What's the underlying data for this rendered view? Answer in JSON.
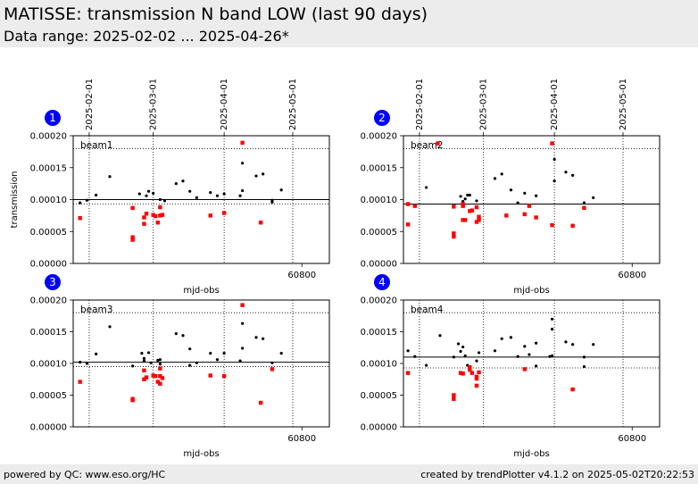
{
  "header": {
    "title": "MATISSE: transmission N band LOW (last 90 days)",
    "subtitle": "Data range: 2025-02-02 ... 2025-04-26*"
  },
  "footer": {
    "left": "powered by QC: www.eso.org/HC",
    "right": "created by trendPlotter v4.1.2 on 2025-05-02T20:22:53"
  },
  "colors": {
    "black_points": "#000000",
    "red_points": "#ff0000",
    "badge": "#0000ff"
  },
  "chart_data": [
    {
      "type": "scatter",
      "panel_number": "1",
      "label": "beam1",
      "xlabel": "mjd-obs",
      "ylabel": "transmission",
      "xlim": [
        60700,
        60812
      ],
      "ylim": [
        0,
        0.0002
      ],
      "yticks": [
        "0.00000",
        "0.00005",
        "0.00010",
        "0.00015",
        "0.00020"
      ],
      "xtick_label": "60800",
      "date_labels": [
        "2025-02-01",
        "2025-03-01",
        "2025-04-01",
        "2025-05-01"
      ],
      "date_mjd": [
        60707,
        60735,
        60766,
        60796
      ],
      "hlines": {
        "solid": 0.0001,
        "dotted": [
          0.00018,
          9.3e-05
        ]
      },
      "series": [
        {
          "color": "black",
          "points": [
            [
              60703,
              9.5e-05
            ],
            [
              60706,
              9.9e-05
            ],
            [
              60710,
              0.000107
            ],
            [
              60716,
              0.000136
            ],
            [
              60729,
              0.000109
            ],
            [
              60732,
              0.000106
            ],
            [
              60733,
              0.000113
            ],
            [
              60735,
              0.00011
            ],
            [
              60738,
              0.0001
            ],
            [
              60740,
              9.8e-05
            ],
            [
              60745,
              0.000125
            ],
            [
              60748,
              0.000129
            ],
            [
              60751,
              0.000113
            ],
            [
              60754,
              0.000103
            ],
            [
              60760,
              0.000111
            ],
            [
              60763,
              0.000106
            ],
            [
              60766,
              0.000109
            ],
            [
              60773,
              0.000106
            ],
            [
              60774,
              0.000114
            ],
            [
              60774,
              0.000157
            ],
            [
              60780,
              0.000137
            ],
            [
              60783,
              0.00014
            ],
            [
              60787,
              9.6e-05
            ],
            [
              60787,
              9.9e-05
            ],
            [
              60791,
              0.000115
            ]
          ]
        },
        {
          "color": "red",
          "points": [
            [
              60703,
              7.1e-05
            ],
            [
              60726,
              8.7e-05
            ],
            [
              60726,
              3.7e-05
            ],
            [
              60726,
              4.1e-05
            ],
            [
              60731,
              6.2e-05
            ],
            [
              60731,
              7.2e-05
            ],
            [
              60732,
              7.8e-05
            ],
            [
              60735,
              7.6e-05
            ],
            [
              60736,
              7.4e-05
            ],
            [
              60737,
              6.4e-05
            ],
            [
              60738,
              8.8e-05
            ],
            [
              60738,
              7.5e-05
            ],
            [
              60739,
              7.6e-05
            ],
            [
              60760,
              7.5e-05
            ],
            [
              60766,
              7.9e-05
            ],
            [
              60774,
              0.000189
            ],
            [
              60782,
              6.4e-05
            ]
          ]
        }
      ]
    },
    {
      "type": "scatter",
      "panel_number": "2",
      "label": "beam2",
      "xlabel": "mjd-obs",
      "ylabel": "",
      "xlim": [
        60700,
        60812
      ],
      "ylim": [
        0,
        0.0002
      ],
      "yticks": [
        "0.00000",
        "0.00005",
        "0.00010",
        "0.00015",
        "0.00020"
      ],
      "xtick_label": "60800",
      "date_labels": [
        "2025-02-01",
        "2025-03-01",
        "2025-04-01",
        "2025-05-01"
      ],
      "date_mjd": [
        60707,
        60735,
        60766,
        60796
      ],
      "hlines": {
        "solid": 9.3e-05,
        "dotted": [
          0.00018
        ]
      },
      "series": [
        {
          "color": "black",
          "points": [
            [
              60710,
              0.000119
            ],
            [
              60725,
              0.000105
            ],
            [
              60726,
              9.7e-05
            ],
            [
              60727,
              0.000101
            ],
            [
              60728,
              0.000107
            ],
            [
              60729,
              0.000107
            ],
            [
              60732,
              9.8e-05
            ],
            [
              60740,
              0.000133
            ],
            [
              60743,
              0.00014
            ],
            [
              60747,
              0.000115
            ],
            [
              60750,
              9.5e-05
            ],
            [
              60753,
              0.00011
            ],
            [
              60758,
              0.000106
            ],
            [
              60766,
              0.000163
            ],
            [
              60766,
              0.000129
            ],
            [
              60771,
              0.000143
            ],
            [
              60774,
              0.000138
            ],
            [
              60779,
              9.5e-05
            ],
            [
              60783,
              0.000103
            ]
          ]
        },
        {
          "color": "red",
          "points": [
            [
              60702,
              9.3e-05
            ],
            [
              60702,
              6.1e-05
            ],
            [
              60705,
              9e-05
            ],
            [
              60715,
              0.000188
            ],
            [
              60722,
              8.9e-05
            ],
            [
              60722,
              4.7e-05
            ],
            [
              60722,
              4.2e-05
            ],
            [
              60726,
              9.3e-05
            ],
            [
              60726,
              9e-05
            ],
            [
              60726,
              6.8e-05
            ],
            [
              60727,
              6.8e-05
            ],
            [
              60729,
              8.2e-05
            ],
            [
              60730,
              8.3e-05
            ],
            [
              60732,
              8.8e-05
            ],
            [
              60732,
              6.5e-05
            ],
            [
              60733,
              6.8e-05
            ],
            [
              60733,
              7.3e-05
            ],
            [
              60745,
              7.5e-05
            ],
            [
              60753,
              7.7e-05
            ],
            [
              60755,
              9e-05
            ],
            [
              60758,
              7.2e-05
            ],
            [
              60765,
              6e-05
            ],
            [
              60765,
              0.000188
            ],
            [
              60774,
              5.9e-05
            ],
            [
              60779,
              8.7e-05
            ]
          ]
        }
      ]
    },
    {
      "type": "scatter",
      "panel_number": "3",
      "label": "beam3",
      "xlabel": "mjd-obs",
      "ylabel": "",
      "xlim": [
        60700,
        60812
      ],
      "ylim": [
        0,
        0.0002
      ],
      "yticks": [
        "0.00000",
        "0.00005",
        "0.00010",
        "0.00015",
        "0.00020"
      ],
      "xtick_label": "60800",
      "date_labels": [],
      "date_mjd": [
        60707,
        60735,
        60766,
        60796
      ],
      "hlines": {
        "solid": 0.000102,
        "dotted": [
          0.00018,
          9.5e-05
        ]
      },
      "series": [
        {
          "color": "black",
          "points": [
            [
              60703,
              0.000102
            ],
            [
              60706,
              0.0001
            ],
            [
              60710,
              0.000115
            ],
            [
              60716,
              0.000158
            ],
            [
              60726,
              9.6e-05
            ],
            [
              60730,
              0.000116
            ],
            [
              60731,
              0.000108
            ],
            [
              60731,
              0.000104
            ],
            [
              60733,
              0.000117
            ],
            [
              60734,
              0.000101
            ],
            [
              60737,
              0.000105
            ],
            [
              60738,
              9.9e-05
            ],
            [
              60738,
              0.000106
            ],
            [
              60745,
              0.000147
            ],
            [
              60748,
              0.000144
            ],
            [
              60751,
              0.000123
            ],
            [
              60751,
              9.7e-05
            ],
            [
              60754,
              0.000101
            ],
            [
              60760,
              0.000116
            ],
            [
              60763,
              0.000106
            ],
            [
              60766,
              0.000116
            ],
            [
              60773,
              0.000104
            ],
            [
              60774,
              0.000163
            ],
            [
              60774,
              0.000124
            ],
            [
              60780,
              0.000141
            ],
            [
              60783,
              0.000139
            ],
            [
              60787,
              0.000101
            ],
            [
              60791,
              0.000116
            ]
          ]
        },
        {
          "color": "red",
          "points": [
            [
              60703,
              7.1e-05
            ],
            [
              60726,
              4.4e-05
            ],
            [
              60726,
              4.2e-05
            ],
            [
              60731,
              8.9e-05
            ],
            [
              60731,
              7.5e-05
            ],
            [
              60732,
              7.8e-05
            ],
            [
              60735,
              8.1e-05
            ],
            [
              60736,
              8e-05
            ],
            [
              60737,
              7.1e-05
            ],
            [
              60738,
              9.2e-05
            ],
            [
              60738,
              8e-05
            ],
            [
              60738,
              6.8e-05
            ],
            [
              60739,
              7.7e-05
            ],
            [
              60760,
              8.1e-05
            ],
            [
              60766,
              8e-05
            ],
            [
              60774,
              0.000192
            ],
            [
              60782,
              3.8e-05
            ],
            [
              60787,
              9.1e-05
            ]
          ]
        }
      ]
    },
    {
      "type": "scatter",
      "panel_number": "4",
      "label": "beam4",
      "xlabel": "mjd-obs",
      "ylabel": "",
      "xlim": [
        60700,
        60812
      ],
      "ylim": [
        0,
        0.0002
      ],
      "yticks": [
        "0.00000",
        "0.00005",
        "0.00010",
        "0.00015",
        "0.00020"
      ],
      "xtick_label": "60800",
      "date_labels": [],
      "date_mjd": [
        60707,
        60735,
        60766,
        60796
      ],
      "hlines": {
        "solid": 0.00011,
        "dotted": [
          0.00018,
          9.3e-05
        ]
      },
      "series": [
        {
          "color": "black",
          "points": [
            [
              60702,
              0.00012
            ],
            [
              60705,
              0.000111
            ],
            [
              60710,
              9.7e-05
            ],
            [
              60716,
              0.000144
            ],
            [
              60722,
              0.00011
            ],
            [
              60724,
              0.000131
            ],
            [
              60725,
              0.000119
            ],
            [
              60726,
              0.000126
            ],
            [
              60727,
              0.000112
            ],
            [
              60728,
              9.7e-05
            ],
            [
              60732,
              0.000104
            ],
            [
              60733,
              0.000117
            ],
            [
              60740,
              0.00012
            ],
            [
              60743,
              0.000139
            ],
            [
              60747,
              0.000141
            ],
            [
              60750,
              0.000111
            ],
            [
              60753,
              0.000127
            ],
            [
              60755,
              0.000114
            ],
            [
              60758,
              0.000132
            ],
            [
              60758,
              9.6e-05
            ],
            [
              60764,
              0.000111
            ],
            [
              60765,
              0.00017
            ],
            [
              60765,
              0.000112
            ],
            [
              60765,
              0.000154
            ],
            [
              60771,
              0.000134
            ],
            [
              60774,
              0.00013
            ],
            [
              60779,
              0.00011
            ],
            [
              60779,
              9.5e-05
            ],
            [
              60783,
              0.00013
            ]
          ]
        },
        {
          "color": "red",
          "points": [
            [
              60702,
              8.5e-05
            ],
            [
              60722,
              5e-05
            ],
            [
              60722,
              4.4e-05
            ],
            [
              60725,
              8.5e-05
            ],
            [
              60726,
              8.4e-05
            ],
            [
              60729,
              9.4e-05
            ],
            [
              60729,
              9e-05
            ],
            [
              60730,
              8.5e-05
            ],
            [
              60732,
              7.9e-05
            ],
            [
              60732,
              7.6e-05
            ],
            [
              60733,
              8.6e-05
            ],
            [
              60732,
              6.5e-05
            ],
            [
              60753,
              9.1e-05
            ],
            [
              60774,
              5.9e-05
            ]
          ]
        }
      ]
    }
  ]
}
